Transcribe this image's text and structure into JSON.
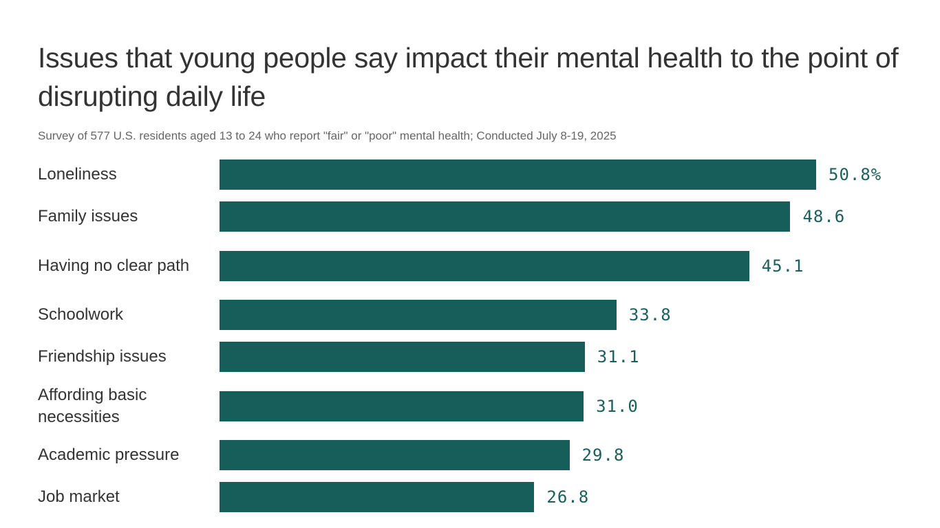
{
  "title": "Issues that young people say impact their mental health to the point of disrupting daily life",
  "subtitle": "Survey of 577 U.S. residents aged 13 to 24 who report \"fair\" or \"poor\" mental health; Conducted July 8-19, 2025",
  "colors": {
    "bar": "#175e5b",
    "value_label": "#1a5f5b"
  },
  "chart_data": {
    "type": "bar",
    "orientation": "horizontal",
    "title": "Issues that young people say impact their mental health to the point of disrupting daily life",
    "subtitle": "Survey of 577 U.S. residents aged 13 to 24 who report \"fair\" or \"poor\" mental health; Conducted July 8-19, 2025",
    "categories": [
      "Loneliness",
      "Family issues",
      "Having no clear path",
      "Schoolwork",
      "Friendship issues",
      "Affording basic necessities",
      "Academic pressure",
      "Job market"
    ],
    "values": [
      50.8,
      48.6,
      45.1,
      33.8,
      31.1,
      31.0,
      29.8,
      26.8
    ],
    "value_labels": [
      "50.8%",
      "48.6",
      "45.1",
      "33.8",
      "31.1",
      "31.0",
      "29.8",
      "26.8"
    ],
    "unit": "%",
    "xlim": [
      0,
      50.8
    ],
    "grid": false,
    "legend": "none"
  }
}
